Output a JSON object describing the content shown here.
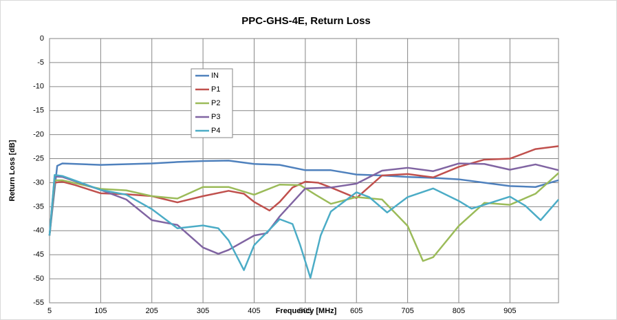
{
  "chart_data": {
    "type": "line",
    "title": "PPC-GHS-4E, Return Loss",
    "x_label": "Frequency [MHz]",
    "y_label": "Return Loss [dB]",
    "xlim": [
      5,
      1000
    ],
    "xticks": [
      5,
      105,
      205,
      305,
      405,
      505,
      605,
      705,
      805,
      905
    ],
    "ylim": [
      -55,
      0
    ],
    "yticks": [
      0,
      -5,
      -10,
      -15,
      -20,
      -25,
      -30,
      -35,
      -40,
      -45,
      -50,
      -55
    ],
    "grid": true,
    "legend": "upper left",
    "series": [
      {
        "name": "IN",
        "color": "#4f81bd",
        "x": [
          5,
          20,
          30,
          105,
          205,
          255,
          305,
          355,
          405,
          455,
          505,
          555,
          605,
          655,
          705,
          755,
          805,
          855,
          905,
          955,
          1000
        ],
        "values": [
          -41,
          -26.5,
          -26,
          -26.3,
          -26,
          -25.7,
          -25.5,
          -25.4,
          -26.1,
          -26.3,
          -27.4,
          -27.4,
          -28.3,
          -28.5,
          -28.8,
          -29,
          -29.3,
          -30,
          -30.7,
          -30.9,
          -29.5
        ]
      },
      {
        "name": "P1",
        "color": "#c0504d",
        "x": [
          5,
          15,
          30,
          55,
          105,
          155,
          205,
          255,
          305,
          355,
          385,
          405,
          435,
          455,
          480,
          505,
          530,
          555,
          605,
          655,
          705,
          755,
          805,
          855,
          905,
          955,
          1000
        ],
        "values": [
          -41,
          -30,
          -29.8,
          -30.5,
          -32.2,
          -32.4,
          -32.8,
          -34.1,
          -32.8,
          -31.7,
          -32.3,
          -34,
          -35.8,
          -34,
          -31,
          -29.8,
          -30,
          -31,
          -33.2,
          -28.5,
          -28.2,
          -28.9,
          -26.7,
          -25.2,
          -25,
          -23,
          -22.4
        ]
      },
      {
        "name": "P2",
        "color": "#9bbb59",
        "x": [
          5,
          15,
          30,
          105,
          155,
          205,
          255,
          305,
          355,
          405,
          455,
          495,
          525,
          555,
          605,
          655,
          705,
          735,
          755,
          805,
          855,
          905,
          955,
          1000
        ],
        "values": [
          -41,
          -29.5,
          -29.5,
          -31.3,
          -31.6,
          -32.8,
          -33.3,
          -30.9,
          -30.9,
          -32.5,
          -30.4,
          -30.5,
          -32.5,
          -34.4,
          -33,
          -33.5,
          -39,
          -46.3,
          -45.5,
          -39,
          -34.2,
          -34.6,
          -32.3,
          -28
        ]
      },
      {
        "name": "P3",
        "color": "#8064a2",
        "x": [
          5,
          15,
          30,
          105,
          155,
          205,
          255,
          305,
          335,
          355,
          405,
          430,
          455,
          505,
          555,
          605,
          655,
          705,
          755,
          805,
          855,
          905,
          955,
          1000
        ],
        "values": [
          -41,
          -28.7,
          -28.8,
          -31.5,
          -33.5,
          -37.8,
          -38.8,
          -43.5,
          -44.8,
          -44,
          -41,
          -40.5,
          -37,
          -31.2,
          -31,
          -30.2,
          -27.5,
          -26.9,
          -27.6,
          -26,
          -26.1,
          -27.3,
          -26.2,
          -27.4
        ]
      },
      {
        "name": "P4",
        "color": "#4bacc6",
        "x": [
          5,
          15,
          30,
          105,
          155,
          205,
          255,
          305,
          335,
          355,
          385,
          405,
          455,
          480,
          495,
          515,
          535,
          555,
          605,
          630,
          665,
          705,
          755,
          805,
          830,
          855,
          905,
          935,
          965,
          1000
        ],
        "values": [
          -41,
          -28.4,
          -28.6,
          -31.5,
          -32.5,
          -35.5,
          -39.5,
          -38.9,
          -39.5,
          -42,
          -48.2,
          -43,
          -37.6,
          -38.6,
          -43,
          -49.8,
          -41,
          -36,
          -32,
          -33,
          -36.2,
          -33,
          -31.2,
          -33.8,
          -35.4,
          -34.6,
          -32.9,
          -34.8,
          -37.8,
          -33.5
        ]
      }
    ]
  }
}
